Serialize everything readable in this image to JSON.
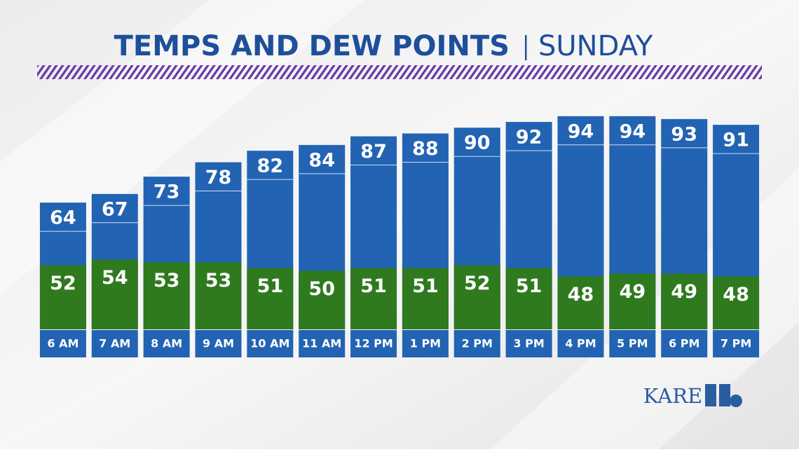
{
  "chart_data": {
    "type": "bar",
    "title": "TEMPS AND DEW POINTS",
    "subtitle": "SUNDAY",
    "categories": [
      "6 AM",
      "7 AM",
      "8 AM",
      "9 AM",
      "10 AM",
      "11 AM",
      "12 PM",
      "1 PM",
      "2 PM",
      "3 PM",
      "4 PM",
      "5 PM",
      "6 PM",
      "7 PM"
    ],
    "series": [
      {
        "name": "Temps",
        "color": "#2263b3",
        "values": [
          64,
          67,
          73,
          78,
          82,
          84,
          87,
          88,
          90,
          92,
          94,
          94,
          93,
          91
        ]
      },
      {
        "name": "Dew Points",
        "color": "#2f7a1f",
        "axis": "y2",
        "values": [
          52,
          54,
          53,
          53,
          51,
          50,
          51,
          51,
          52,
          51,
          48,
          49,
          49,
          48
        ]
      }
    ],
    "ylim": [
      20,
      110
    ],
    "y2lim": [
      29,
      122
    ]
  },
  "logo_text": "KARE"
}
